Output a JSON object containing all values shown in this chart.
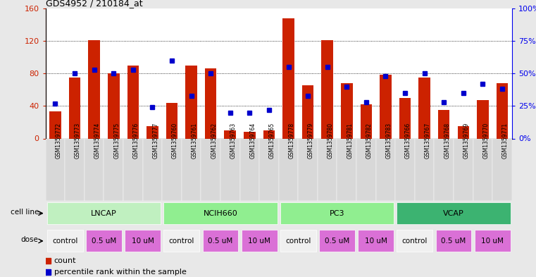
{
  "title": "GDS4952 / 210184_at",
  "samples": [
    "GSM1359772",
    "GSM1359773",
    "GSM1359774",
    "GSM1359775",
    "GSM1359776",
    "GSM1359777",
    "GSM1359760",
    "GSM1359761",
    "GSM1359762",
    "GSM1359763",
    "GSM1359764",
    "GSM1359765",
    "GSM1359778",
    "GSM1359779",
    "GSM1359780",
    "GSM1359781",
    "GSM1359782",
    "GSM1359783",
    "GSM1359766",
    "GSM1359767",
    "GSM1359768",
    "GSM1359769",
    "GSM1359770",
    "GSM1359771"
  ],
  "counts": [
    33,
    75,
    121,
    80,
    90,
    15,
    44,
    90,
    86,
    10,
    8,
    10,
    148,
    65,
    121,
    68,
    42,
    78,
    50,
    75,
    35,
    15,
    47,
    68
  ],
  "percentiles": [
    27,
    50,
    53,
    50,
    53,
    24,
    60,
    33,
    50,
    20,
    20,
    22,
    55,
    33,
    55,
    40,
    28,
    48,
    35,
    50,
    28,
    35,
    42,
    38
  ],
  "bar_color": "#CC2200",
  "dot_color": "#0000CC",
  "ylim_left": [
    0,
    160
  ],
  "ylim_right": [
    0,
    100
  ],
  "yticks_left": [
    0,
    40,
    80,
    120,
    160
  ],
  "yticks_right": [
    0,
    25,
    50,
    75,
    100
  ],
  "ytick_labels_right": [
    "0%",
    "25%",
    "50%",
    "75%",
    "100%"
  ],
  "bg_color": "#e8e8e8",
  "plot_bg_color": "#ffffff",
  "cl_spans": [
    [
      0,
      6,
      "LNCAP",
      "#c0f0c0"
    ],
    [
      6,
      12,
      "NCIH660",
      "#90EE90"
    ],
    [
      12,
      18,
      "PC3",
      "#90EE90"
    ],
    [
      18,
      24,
      "VCAP",
      "#3CB371"
    ]
  ],
  "dose_spans": [
    [
      0,
      2,
      "control",
      "#f0f0f0"
    ],
    [
      2,
      4,
      "0.5 uM",
      "#DA70D6"
    ],
    [
      4,
      6,
      "10 uM",
      "#DA70D6"
    ],
    [
      6,
      8,
      "control",
      "#f0f0f0"
    ],
    [
      8,
      10,
      "0.5 uM",
      "#DA70D6"
    ],
    [
      10,
      12,
      "10 uM",
      "#DA70D6"
    ],
    [
      12,
      14,
      "control",
      "#f0f0f0"
    ],
    [
      14,
      16,
      "0.5 uM",
      "#DA70D6"
    ],
    [
      16,
      18,
      "10 uM",
      "#DA70D6"
    ],
    [
      18,
      20,
      "control",
      "#f0f0f0"
    ],
    [
      20,
      22,
      "0.5 uM",
      "#DA70D6"
    ],
    [
      22,
      24,
      "10 uM",
      "#DA70D6"
    ]
  ]
}
